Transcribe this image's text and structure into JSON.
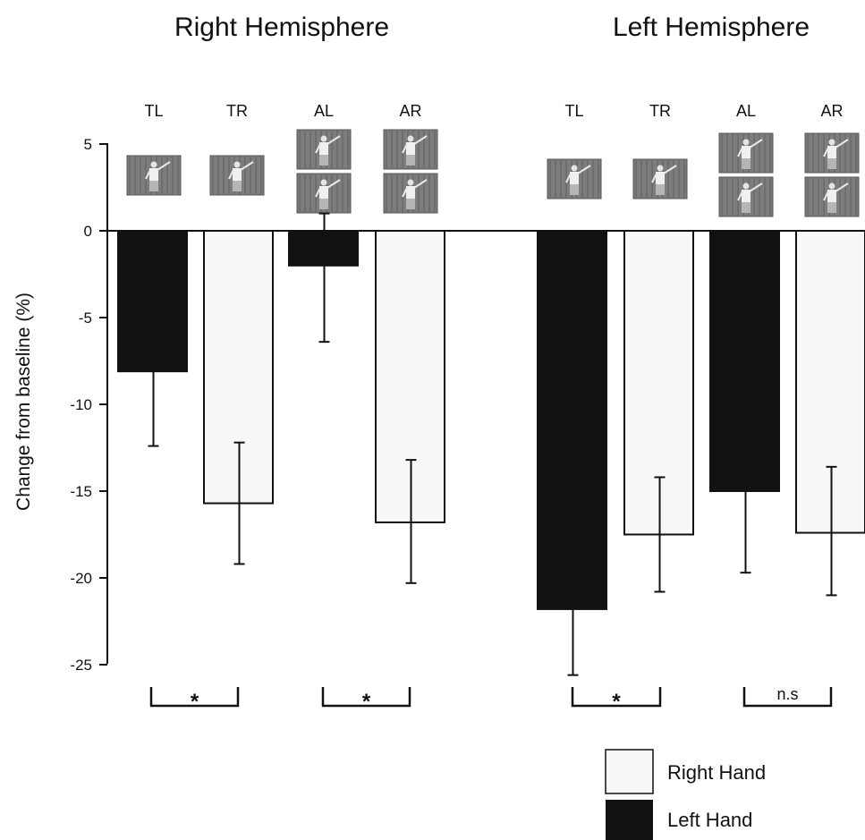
{
  "chart_data": {
    "type": "bar",
    "ylabel": "Change from baseline (%)",
    "ylim": [
      -25,
      5
    ],
    "yticks": [
      5,
      0,
      -5,
      -10,
      -15,
      -20,
      -25
    ],
    "panels": [
      {
        "title": "Right Hemisphere",
        "categories": [
          "TL",
          "TR",
          "AL",
          "AR"
        ],
        "bars": [
          {
            "label": "TL",
            "hand": "Left Hand",
            "value": -8.1,
            "err_low": -12.4,
            "err_high": -3.7
          },
          {
            "label": "TR",
            "hand": "Right Hand",
            "value": -15.7,
            "err_low": -19.2,
            "err_high": -12.2
          },
          {
            "label": "AL",
            "hand": "Left Hand",
            "value": -2.0,
            "err_low": -6.4,
            "err_high": 1.0
          },
          {
            "label": "AR",
            "hand": "Right Hand",
            "value": -16.8,
            "err_low": -20.3,
            "err_high": -13.2
          }
        ],
        "significance": [
          "*",
          "*"
        ]
      },
      {
        "title": "Left Hemisphere",
        "categories": [
          "TL",
          "TR",
          "AL",
          "AR"
        ],
        "bars": [
          {
            "label": "TL",
            "hand": "Left Hand",
            "value": -21.8,
            "err_low": -25.6,
            "err_high": -18.0
          },
          {
            "label": "TR",
            "hand": "Right Hand",
            "value": -17.5,
            "err_low": -20.8,
            "err_high": -14.2
          },
          {
            "label": "AL",
            "hand": "Left Hand",
            "value": -15.0,
            "err_low": -19.7,
            "err_high": -10.4
          },
          {
            "label": "AR",
            "hand": "Right Hand",
            "value": -17.4,
            "err_low": -21.0,
            "err_high": -13.6
          }
        ],
        "significance": [
          "*",
          "n.s"
        ]
      }
    ],
    "legend": [
      {
        "name": "Right Hand",
        "color": "#f8f8f8"
      },
      {
        "name": "Left Hand",
        "color": "#111111"
      }
    ],
    "legend_position": "bottom-right"
  },
  "colors": {
    "left_hand": "#111111",
    "right_hand": "#f8f8f8",
    "axis": "#111111"
  },
  "icons": {
    "bar_thumbnail": "person-gesture-photo-icon"
  }
}
